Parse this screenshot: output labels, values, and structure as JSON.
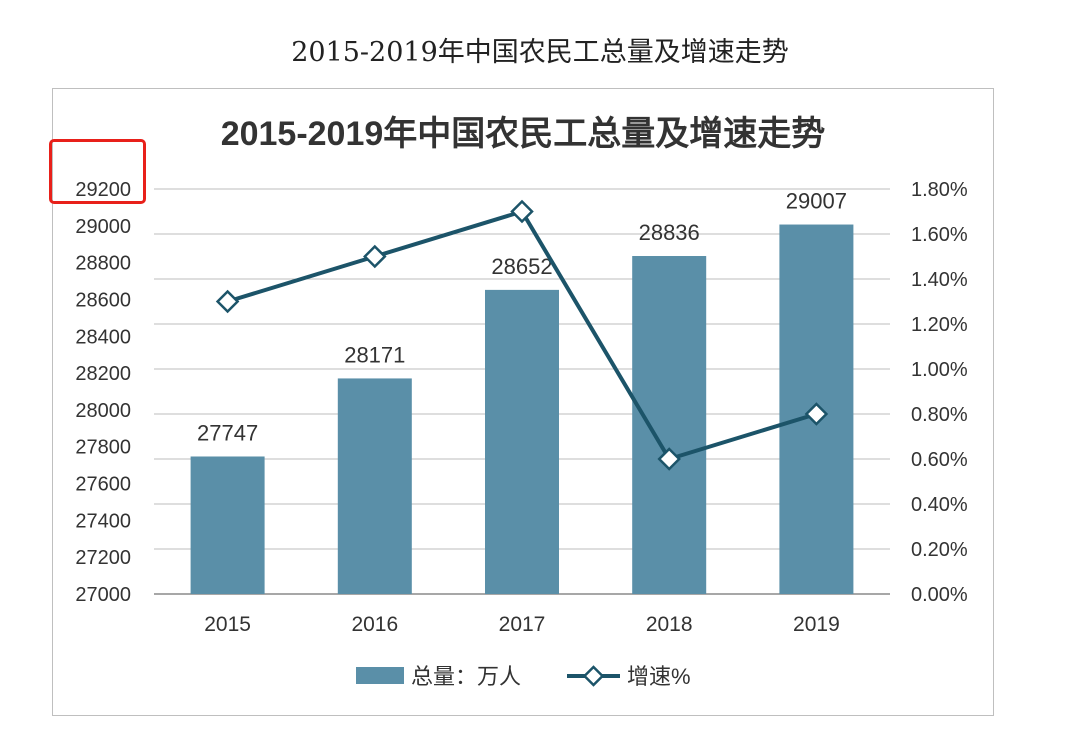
{
  "header": {
    "title": "2015-2019年中国农民工总量及增速走势"
  },
  "chart_data": {
    "type": "bar",
    "title": "2015-2019年中国农民工总量及增速走势",
    "categories": [
      "2015",
      "2016",
      "2017",
      "2018",
      "2019"
    ],
    "series": [
      {
        "name": "总量：万人",
        "type": "bar",
        "axis": "left",
        "values": [
          27747,
          28171,
          28652,
          28836,
          29007
        ],
        "color": "#5a8fa8"
      },
      {
        "name": "增速%",
        "type": "line",
        "axis": "right",
        "values": [
          1.3,
          1.5,
          1.7,
          0.6,
          0.8
        ],
        "color": "#1c5469"
      }
    ],
    "data_labels": [
      "27747",
      "28171",
      "28652",
      "28836",
      "29007"
    ],
    "y_left": {
      "ylim": [
        27000,
        29200
      ],
      "ticks": [
        "27000",
        "27200",
        "27400",
        "27600",
        "27800",
        "28000",
        "28200",
        "28400",
        "28600",
        "28800",
        "29000",
        "29200"
      ]
    },
    "y_right": {
      "ylim": [
        0,
        1.8
      ],
      "ticks": [
        "0.00%",
        "0.20%",
        "0.40%",
        "0.60%",
        "0.80%",
        "1.00%",
        "1.20%",
        "1.40%",
        "1.60%",
        "1.80%"
      ]
    },
    "grid": true,
    "legend": "bottom"
  },
  "colors": {
    "bar": "#5a8fa8",
    "line": "#1c5469",
    "highlight": "#e8201a"
  }
}
